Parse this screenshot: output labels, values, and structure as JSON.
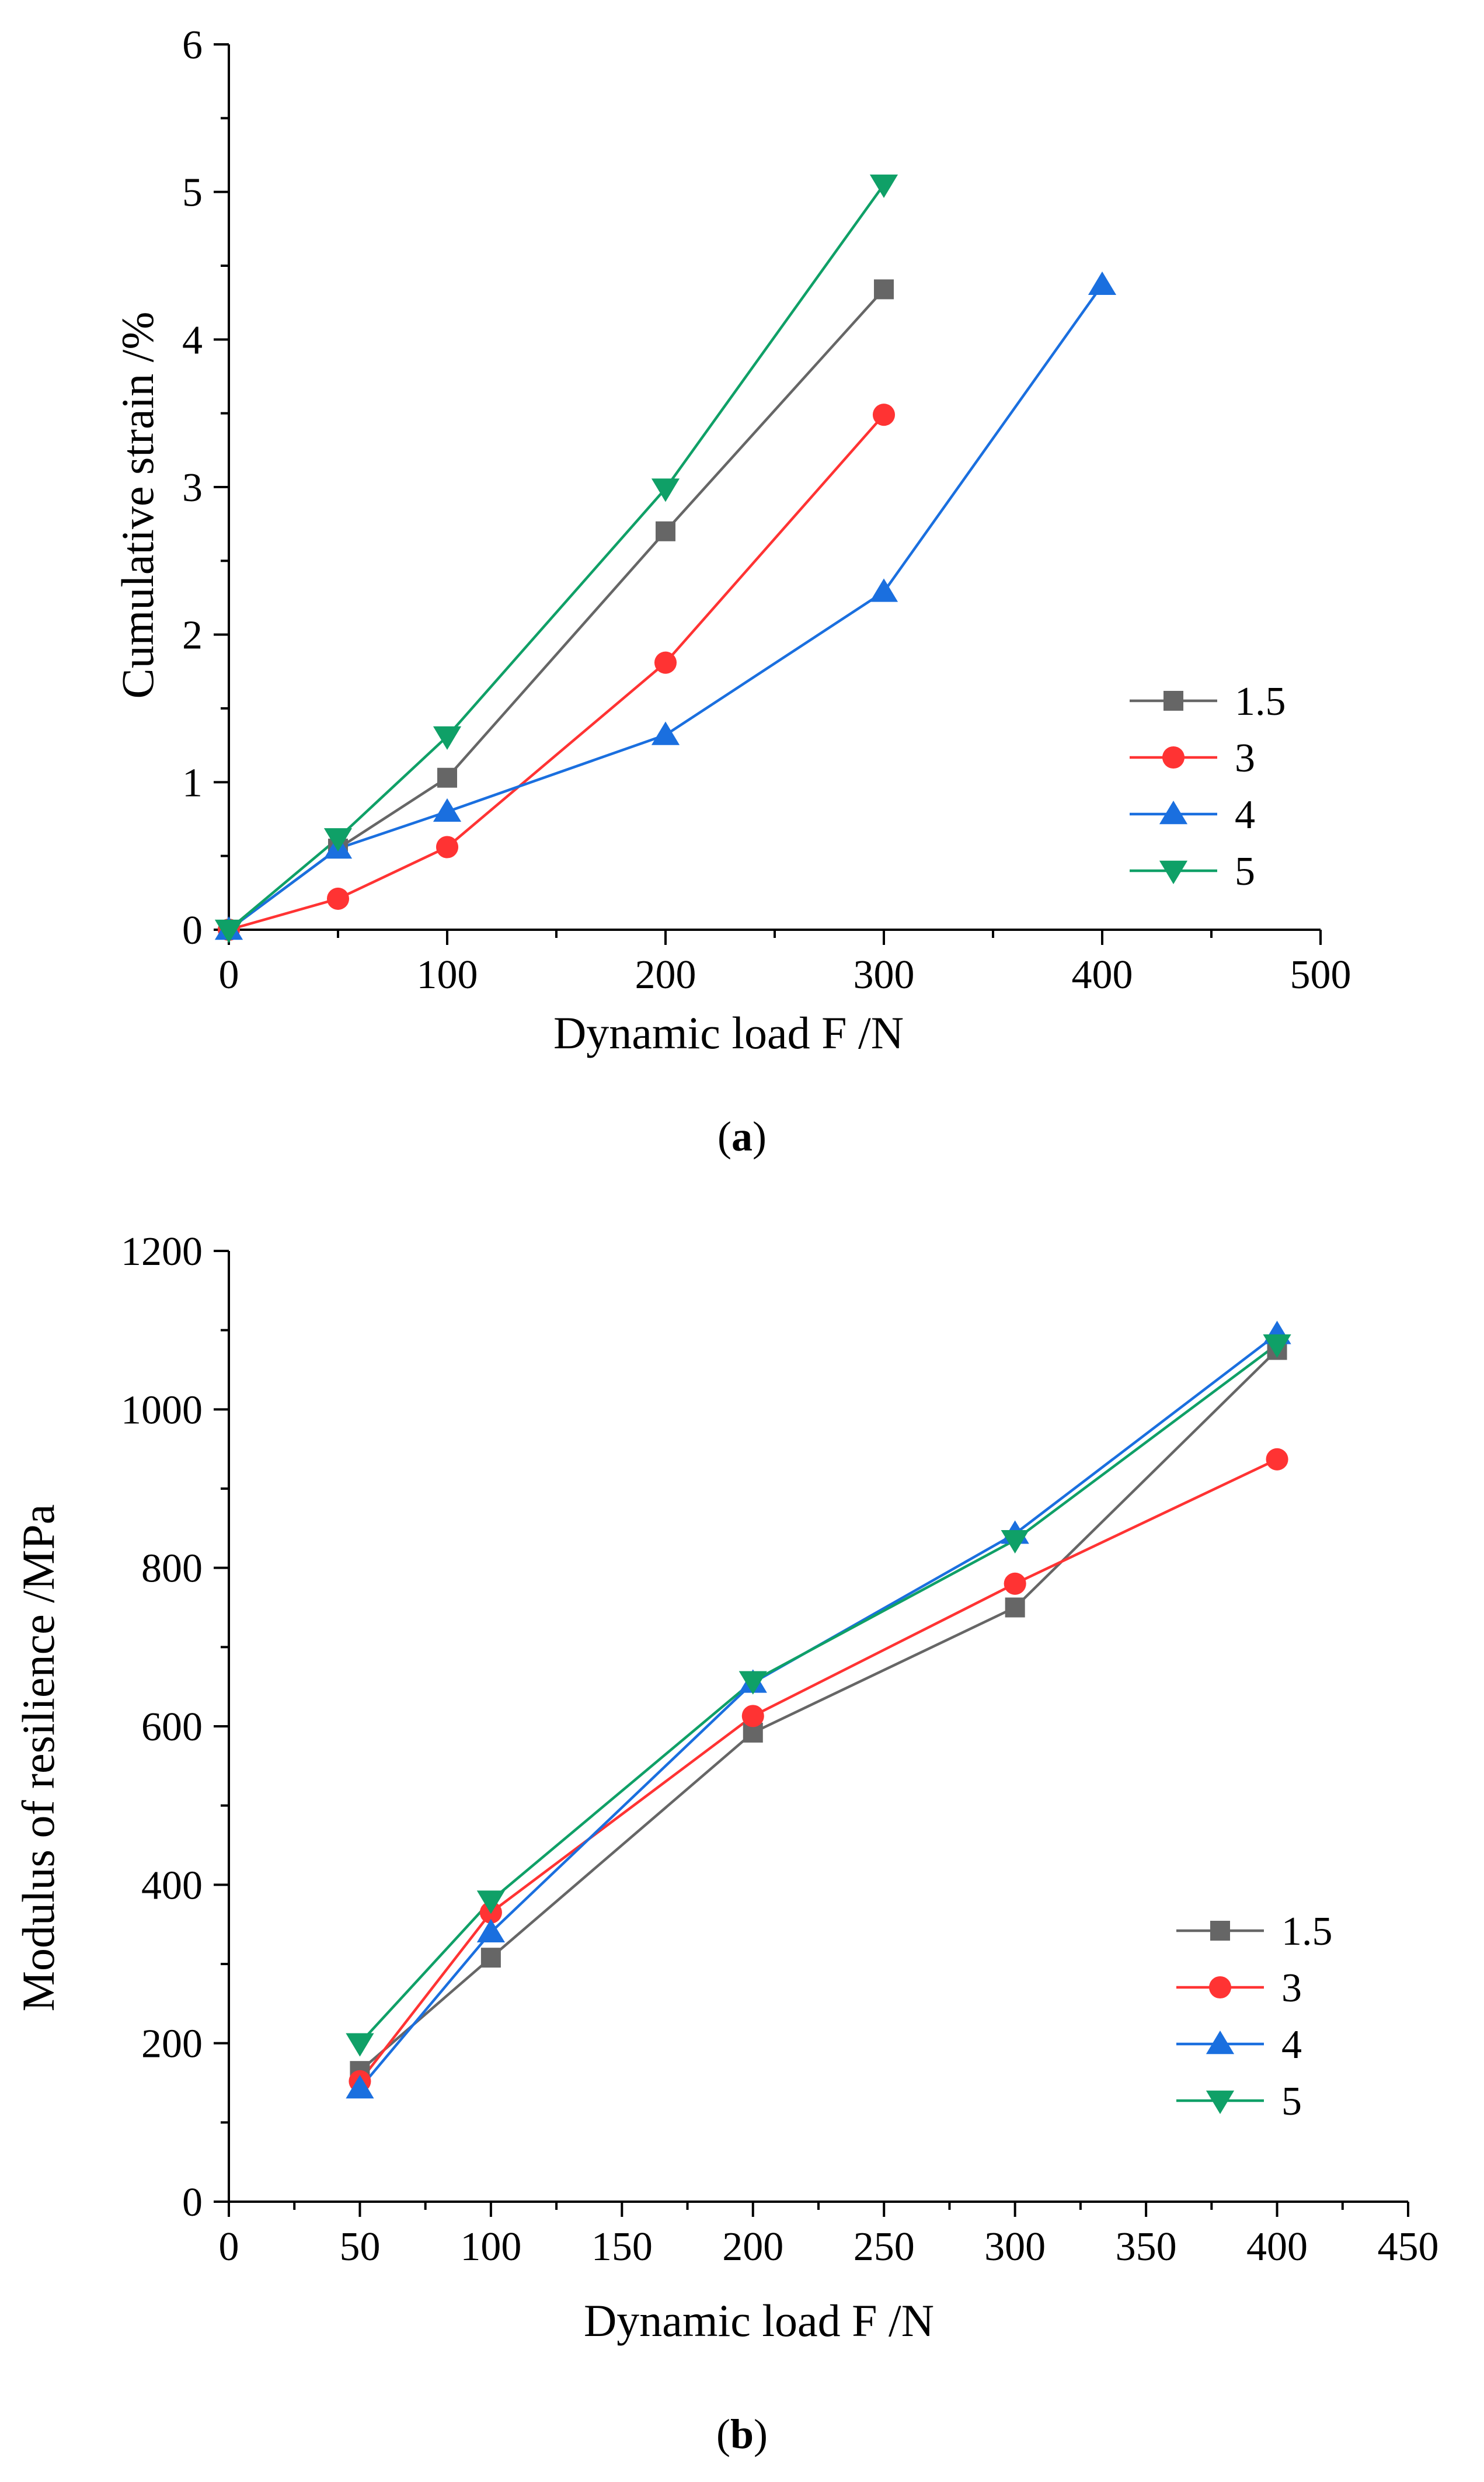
{
  "chart_data": [
    {
      "type": "line",
      "panel": "a",
      "caption_label": "a",
      "xlabel": "Dynamic load F /N",
      "ylabel": "Cumulative strain /%",
      "xlim": [
        0,
        500
      ],
      "ylim": [
        0,
        6
      ],
      "xticks": [
        0,
        100,
        200,
        300,
        400,
        500
      ],
      "yticks": [
        0,
        1,
        2,
        3,
        4,
        5,
        6
      ],
      "legend_position": "right",
      "series": [
        {
          "name": "1.5",
          "color": "#666666",
          "marker": "square",
          "x": [
            0,
            50,
            100,
            200,
            300
          ],
          "y": [
            0,
            0.55,
            1.03,
            2.7,
            4.34
          ]
        },
        {
          "name": "3",
          "color": "#ff3333",
          "marker": "circle",
          "x": [
            0,
            50,
            100,
            200,
            300
          ],
          "y": [
            0,
            0.21,
            0.56,
            1.81,
            3.49
          ]
        },
        {
          "name": "4",
          "color": "#1a6fdf",
          "marker": "triangle-up",
          "x": [
            0,
            50,
            100,
            200,
            300,
            400
          ],
          "y": [
            0,
            0.55,
            0.8,
            1.32,
            2.29,
            4.37
          ]
        },
        {
          "name": "5",
          "color": "#0fa067",
          "marker": "triangle-down",
          "x": [
            0,
            50,
            100,
            200,
            300
          ],
          "y": [
            0,
            0.62,
            1.31,
            2.99,
            5.05
          ]
        }
      ]
    },
    {
      "type": "line",
      "panel": "b",
      "caption_label": "b",
      "xlabel": "Dynamic load F /N",
      "ylabel": "Modulus of resilience /MPa",
      "xlim": [
        0,
        450
      ],
      "ylim": [
        0,
        1200
      ],
      "xticks": [
        0,
        50,
        100,
        150,
        200,
        250,
        300,
        350,
        400,
        450
      ],
      "yticks": [
        0,
        200,
        400,
        600,
        800,
        1000,
        1200
      ],
      "legend_position": "right",
      "series": [
        {
          "name": "1.5",
          "color": "#666666",
          "marker": "square",
          "x": [
            50,
            100,
            200,
            300,
            400
          ],
          "y": [
            165,
            308,
            592,
            750,
            1075
          ]
        },
        {
          "name": "3",
          "color": "#ff3333",
          "marker": "circle",
          "x": [
            50,
            100,
            200,
            300,
            400
          ],
          "y": [
            152,
            365,
            613,
            780,
            937
          ]
        },
        {
          "name": "4",
          "color": "#1a6fdf",
          "marker": "triangle-up",
          "x": [
            50,
            100,
            200,
            300,
            400
          ],
          "y": [
            143,
            340,
            655,
            843,
            1095
          ]
        },
        {
          "name": "5",
          "color": "#0fa067",
          "marker": "triangle-down",
          "x": [
            50,
            100,
            200,
            300,
            400
          ],
          "y": [
            200,
            380,
            657,
            835,
            1082
          ]
        }
      ]
    }
  ]
}
